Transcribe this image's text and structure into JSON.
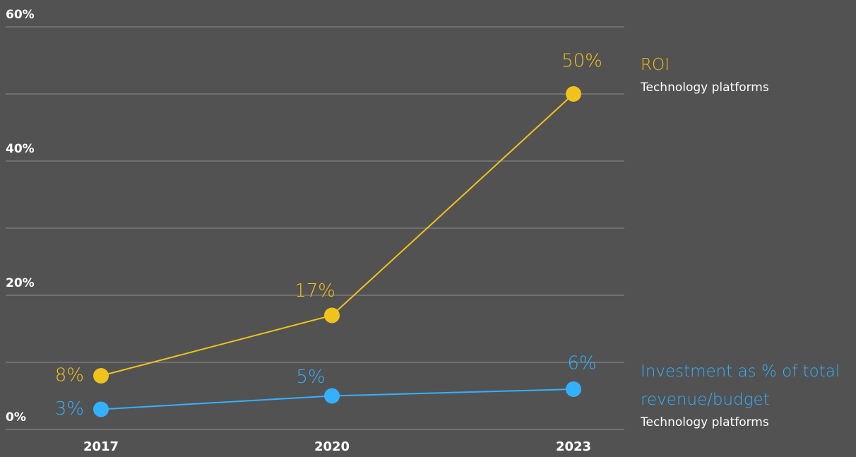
{
  "chart_data": {
    "type": "line",
    "categories": [
      "2017",
      "2020",
      "2023"
    ],
    "series": [
      {
        "name": "ROI",
        "subtitle": "Technology platforms",
        "color": "#f1c21b",
        "values": [
          8,
          17,
          50
        ],
        "value_labels": [
          "8%",
          "17%",
          "50%"
        ]
      },
      {
        "name": "Investment as % of total revenue/budget",
        "subtitle": "Technology platforms",
        "color": "#33b1ff",
        "values": [
          3,
          5,
          6
        ],
        "value_labels": [
          "3%",
          "5%",
          "6%"
        ]
      }
    ],
    "ylim": [
      0,
      60
    ],
    "yticks": [
      {
        "value": 0,
        "label": "0%"
      },
      {
        "value": 20,
        "label": "20%"
      },
      {
        "value": 40,
        "label": "40%"
      },
      {
        "value": 60,
        "label": "60%"
      }
    ],
    "minor_yticks": [
      10,
      30,
      50
    ],
    "grid": true
  }
}
